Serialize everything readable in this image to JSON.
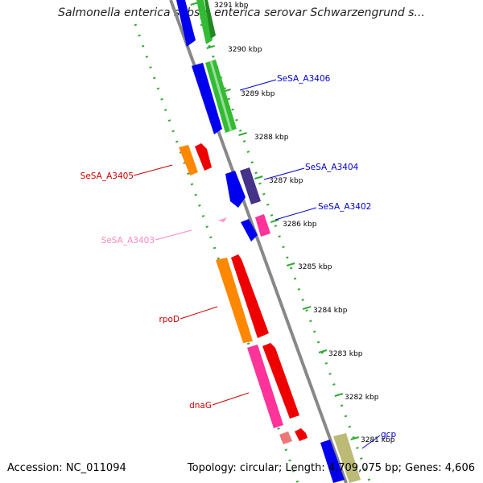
{
  "title": "Salmonella enterica subsp. enterica serovar Schwarzengrund s...",
  "footer": {
    "accession": "Accession: NC_011094",
    "stats": "Topology: circular; Length: 4,709,075 bp; Genes: 4,606"
  },
  "kbp_ticks": [
    "3291 kbp",
    "3290 kbp",
    "3289 kbp",
    "3288 kbp",
    "3287 kbp",
    "3286 kbp",
    "3285 kbp",
    "3284 kbp",
    "3283 kbp",
    "3282 kbp",
    "3281 kbp"
  ],
  "gene_labels": [
    {
      "text": "SeSA_A3406",
      "color": "#0000cc"
    },
    {
      "text": "SeSA_A3404",
      "color": "#0000cc"
    },
    {
      "text": "SeSA_A3402",
      "color": "#0000cc"
    },
    {
      "text": "gcp",
      "color": "#0000cc"
    },
    {
      "text": "SeSA_A3405",
      "color": "#cc0000"
    },
    {
      "text": "SeSA_A3403",
      "color": "#ff88bb"
    },
    {
      "text": "rpoD",
      "color": "#cc0000"
    },
    {
      "text": "dnaG",
      "color": "#cc0000"
    }
  ],
  "colors": {
    "backbone": "#888888",
    "dots": "#33aa33",
    "blue": "#0000ee",
    "green": "#33bb33",
    "purple": "#443388",
    "pink": "#ff3399",
    "orange": "#ff8800",
    "red": "#ee0000",
    "khaki": "#bbbb77"
  }
}
